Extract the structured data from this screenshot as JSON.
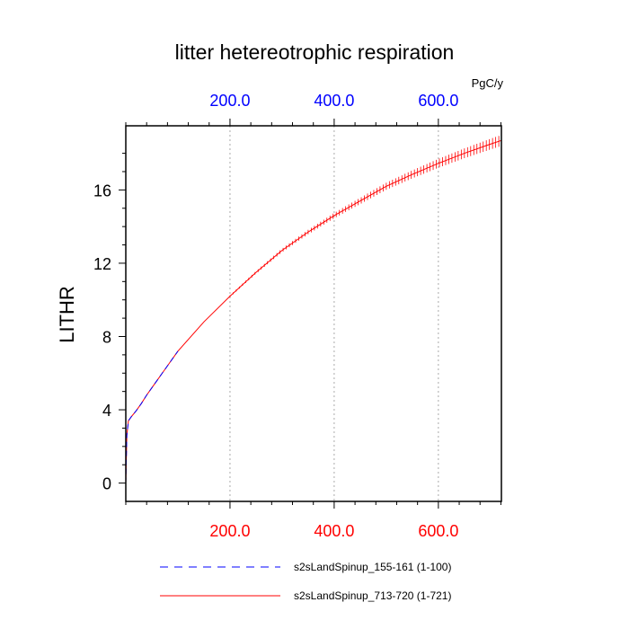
{
  "chart_data": {
    "type": "line",
    "title": "litter hetereotrophic respiration",
    "ylabel": "LITHR",
    "units": "PgC/y",
    "xlim": [
      0,
      721
    ],
    "ylim": [
      -1,
      19.5
    ],
    "yticks": [
      0,
      4,
      8,
      12,
      16
    ],
    "ytick_labels": [
      "0",
      "4",
      "8",
      "12",
      "16"
    ],
    "xticks": [
      200,
      400,
      600
    ],
    "xtick_labels": [
      "200.0",
      "400.0",
      "600.0"
    ],
    "top_xtick_labels": [
      "200.0",
      "400.0",
      "600.0"
    ],
    "grid": "vertical dotted at x ticks",
    "legend_position": "bottom",
    "series": [
      {
        "name": "s2sLandSpinup_155-161 (1-100)",
        "color": "#0000ff",
        "style": "dashed",
        "x": [
          0,
          2,
          5,
          10,
          20,
          30,
          40,
          50,
          60,
          70,
          80,
          90,
          100
        ],
        "y": [
          0,
          2.6,
          3.4,
          3.6,
          3.95,
          4.35,
          4.8,
          5.2,
          5.6,
          6.0,
          6.4,
          6.8,
          7.2
        ]
      },
      {
        "name": "s2sLandSpinup_713-720 (1-721)",
        "color": "#ff0000",
        "style": "solid",
        "x": [
          0,
          2,
          5,
          10,
          20,
          30,
          40,
          50,
          60,
          70,
          80,
          90,
          100,
          150,
          200,
          250,
          300,
          350,
          400,
          450,
          500,
          550,
          600,
          650,
          700,
          721
        ],
        "y": [
          0,
          2.6,
          3.4,
          3.6,
          3.95,
          4.35,
          4.8,
          5.2,
          5.6,
          6.0,
          6.4,
          6.8,
          7.2,
          8.8,
          10.2,
          11.5,
          12.7,
          13.7,
          14.6,
          15.4,
          16.2,
          16.85,
          17.45,
          18.0,
          18.5,
          18.7
        ]
      }
    ]
  }
}
